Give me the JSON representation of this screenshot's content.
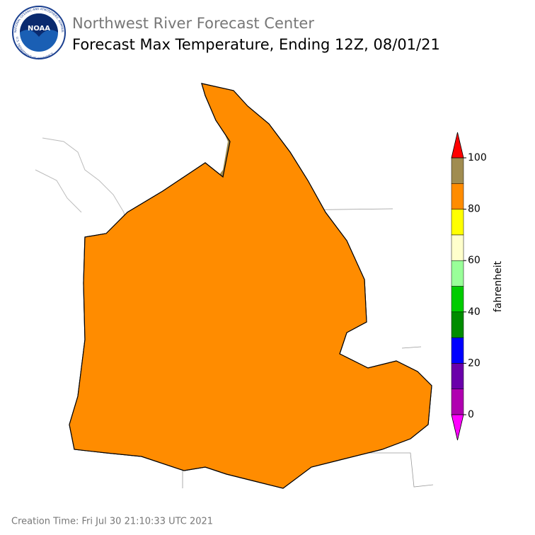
{
  "header": {
    "title": "Northwest River Forecast Center",
    "subtitle": "Forecast Max Temperature, Ending 12Z, 08/01/21",
    "logo": {
      "name": "NOAA",
      "ring_top": "NATIONAL OCEANIC AND ATMOSPHERIC ADMINISTRATION",
      "ring_bottom": "U.S. DEPARTMENT OF COMMERCE"
    }
  },
  "legend": {
    "label": "fahrenheit",
    "bins": [
      0,
      10,
      20,
      30,
      40,
      50,
      60,
      70,
      80,
      90,
      100
    ],
    "colors": [
      "#b000b0",
      "#6a00aa",
      "#0000ff",
      "#008c00",
      "#00cc00",
      "#99ff99",
      "#ffffcc",
      "#ffff00",
      "#ff8c00",
      "#a08c50"
    ],
    "over_color": "#ff0000",
    "under_color": "#ff00ff",
    "ticks": [
      0,
      20,
      40,
      60,
      80,
      100
    ]
  },
  "footer": {
    "creation_time": "Creation Time: Fri Jul 30 21:10:33 UTC 2021"
  }
}
